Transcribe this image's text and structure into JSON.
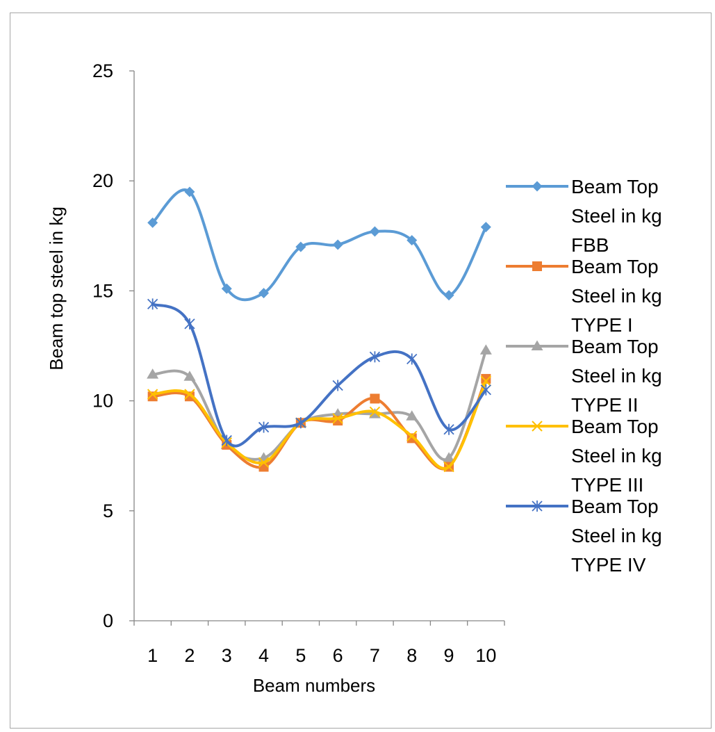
{
  "chart_data": {
    "type": "line",
    "smooth": true,
    "title": "",
    "xlabel": "Beam numbers",
    "ylabel": "Beam top steel in kg",
    "categories": [
      "1",
      "2",
      "3",
      "4",
      "5",
      "6",
      "7",
      "8",
      "9",
      "10"
    ],
    "ylim": [
      0,
      25
    ],
    "yticks": [
      "0",
      "5",
      "10",
      "15",
      "20",
      "25"
    ],
    "grid": false,
    "legend_position": "right",
    "series": [
      {
        "name": "Beam Top Steel in kg FBB",
        "legend_lines": [
          "Beam Top",
          "Steel in kg",
          "FBB"
        ],
        "color": "#5b9bd5",
        "marker": "diamond",
        "values": [
          18.1,
          19.5,
          15.1,
          14.9,
          17.0,
          17.1,
          17.7,
          17.3,
          14.8,
          17.9
        ]
      },
      {
        "name": "Beam Top Steel in kg TYPE I",
        "legend_lines": [
          "Beam Top",
          "Steel in kg",
          "TYPE I"
        ],
        "color": "#ed7d31",
        "marker": "square",
        "values": [
          10.2,
          10.2,
          8.0,
          7.0,
          9.0,
          9.1,
          10.1,
          8.3,
          7.0,
          11.0
        ]
      },
      {
        "name": "Beam Top Steel in kg TYPE II",
        "legend_lines": [
          "Beam Top",
          "Steel in kg",
          "TYPE II"
        ],
        "color": "#a5a5a5",
        "marker": "triangle",
        "values": [
          11.2,
          11.1,
          8.0,
          7.4,
          9.0,
          9.4,
          9.4,
          9.3,
          7.4,
          12.3
        ]
      },
      {
        "name": "Beam Top Steel in kg TYPE III",
        "legend_lines": [
          "Beam Top",
          "Steel in kg",
          "TYPE III"
        ],
        "color": "#ffc000",
        "marker": "x",
        "values": [
          10.3,
          10.3,
          8.1,
          7.2,
          9.0,
          9.2,
          9.5,
          8.4,
          7.0,
          10.9
        ]
      },
      {
        "name": "Beam Top Steel in kg TYPE IV",
        "legend_lines": [
          "Beam Top",
          "Steel in kg",
          "TYPE IV"
        ],
        "color": "#4472c4",
        "marker": "star",
        "values": [
          14.4,
          13.5,
          8.2,
          8.8,
          9.0,
          10.7,
          12.0,
          11.9,
          8.7,
          10.5
        ]
      }
    ]
  }
}
